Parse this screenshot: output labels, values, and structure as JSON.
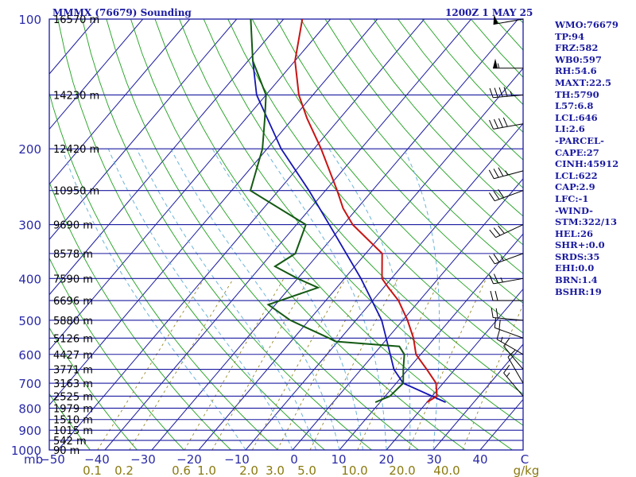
{
  "header": {
    "title": "MMMX (76679) Sounding",
    "valid_time": "1200Z  1 MAY 25"
  },
  "stats": [
    "WMO:76679",
    "TP:94",
    "FRZ:582",
    "WB0:597",
    "RH:54.6",
    "MAXT:22.5",
    "TH:5790",
    "L57:6.8",
    "LCL:646",
    "LI:2.6",
    "-PARCEL-",
    "CAPE:27",
    "CINH:45912",
    "LCL:622",
    "CAP:2.9",
    "LFC:-1",
    "-WIND-",
    "STM:322/13",
    "HEL:26",
    "SHR+:0.0",
    "SRDS:35",
    "EHI:0.0",
    "BRN:1.4",
    "BSHR:19"
  ],
  "colors": {
    "isobar": "#1a1aa0",
    "isotherm": "#1a1aa0",
    "dry_adiabat": "#1ea01e",
    "moist_adiabat": "#6ab4d8",
    "mixing_ratio": "#8a7a10",
    "temperature": "#c81414",
    "dewpoint": "#145a14",
    "parcel": "#1414b4"
  },
  "chart_data": {
    "type": "skew-t",
    "title": "MMMX (76679) Sounding",
    "y_axis": {
      "scale": "log-pressure",
      "unit": "mb",
      "range": [
        1000,
        100
      ]
    },
    "x_axis": {
      "unit": "C",
      "range": [
        -50,
        50
      ]
    },
    "x_axis_label": "mb",
    "pressure_ticks": [
      "100",
      "200",
      "300",
      "400",
      "500",
      "600",
      "700",
      "800",
      "900",
      "1000"
    ],
    "temperature_ticks": [
      "−50",
      "−40",
      "−30",
      "−20",
      "−10",
      "0",
      "10",
      "20",
      "30",
      "40",
      "C"
    ],
    "mixing_ratio_ticks": [
      "0.1",
      "0.2",
      "0.6",
      "1.0",
      "2.0",
      "3.0",
      "5.0",
      "10.0",
      "20.0",
      "40.0",
      "g/kg"
    ],
    "heights": [
      {
        "p": 100,
        "label": "16570 m"
      },
      {
        "p": 150,
        "label": "14230 m"
      },
      {
        "p": 200,
        "label": "12420 m"
      },
      {
        "p": 250,
        "label": "10950 m"
      },
      {
        "p": 300,
        "label": "9690 m"
      },
      {
        "p": 350,
        "label": "8578 m"
      },
      {
        "p": 400,
        "label": "7590 m"
      },
      {
        "p": 450,
        "label": "6696 m"
      },
      {
        "p": 500,
        "label": "5880 m"
      },
      {
        "p": 550,
        "label": "5126 m"
      },
      {
        "p": 600,
        "label": "4427 m"
      },
      {
        "p": 650,
        "label": "3771 m"
      },
      {
        "p": 700,
        "label": "3163 m"
      },
      {
        "p": 750,
        "label": "2525 m"
      },
      {
        "p": 800,
        "label": "1979 m"
      },
      {
        "p": 850,
        "label": "1510 m"
      },
      {
        "p": 900,
        "label": "1015 m"
      },
      {
        "p": 950,
        "label": "542 m"
      },
      {
        "p": 1000,
        "label": "90 m"
      }
    ],
    "temperature_profile": [
      {
        "p": 775,
        "t": 20.0
      },
      {
        "p": 750,
        "t": 21.0
      },
      {
        "p": 700,
        "t": 18.5
      },
      {
        "p": 650,
        "t": 14.0
      },
      {
        "p": 600,
        "t": 9.0
      },
      {
        "p": 550,
        "t": 5.5
      },
      {
        "p": 500,
        "t": 1.0
      },
      {
        "p": 450,
        "t": -4.5
      },
      {
        "p": 420,
        "t": -9.0
      },
      {
        "p": 400,
        "t": -12.0
      },
      {
        "p": 350,
        "t": -16.5
      },
      {
        "p": 300,
        "t": -28.0
      },
      {
        "p": 275,
        "t": -33.0
      },
      {
        "p": 250,
        "t": -37.5
      },
      {
        "p": 200,
        "t": -48.5
      },
      {
        "p": 170,
        "t": -57.0
      },
      {
        "p": 150,
        "t": -63.0
      },
      {
        "p": 125,
        "t": -70.0
      },
      {
        "p": 100,
        "t": -76.0
      }
    ],
    "dewpoint_profile": [
      {
        "p": 775,
        "t": 9.0
      },
      {
        "p": 750,
        "t": 11.0
      },
      {
        "p": 700,
        "t": 11.5
      },
      {
        "p": 650,
        "t": 9.0
      },
      {
        "p": 600,
        "t": 6.5
      },
      {
        "p": 575,
        "t": 4.0
      },
      {
        "p": 560,
        "t": -10.5
      },
      {
        "p": 550,
        "t": -12.5
      },
      {
        "p": 500,
        "t": -24.0
      },
      {
        "p": 460,
        "t": -31.5
      },
      {
        "p": 420,
        "t": -24.0
      },
      {
        "p": 400,
        "t": -30.0
      },
      {
        "p": 375,
        "t": -37.0
      },
      {
        "p": 350,
        "t": -35.0
      },
      {
        "p": 300,
        "t": -38.0
      },
      {
        "p": 250,
        "t": -56.0
      },
      {
        "p": 200,
        "t": -61.0
      },
      {
        "p": 170,
        "t": -66.0
      },
      {
        "p": 150,
        "t": -70.0
      },
      {
        "p": 125,
        "t": -79.0
      },
      {
        "p": 100,
        "t": -87.0
      }
    ],
    "parcel_profile": [
      {
        "p": 775,
        "t": 24.0
      },
      {
        "p": 700,
        "t": 11.5
      },
      {
        "p": 650,
        "t": 7.0
      },
      {
        "p": 600,
        "t": 3.5
      },
      {
        "p": 500,
        "t": -4.5
      },
      {
        "p": 400,
        "t": -16.5
      },
      {
        "p": 300,
        "t": -33.0
      },
      {
        "p": 250,
        "t": -43.5
      },
      {
        "p": 200,
        "t": -57.0
      },
      {
        "p": 150,
        "t": -72.0
      },
      {
        "p": 125,
        "t": -79.0
      }
    ],
    "wind_profile": [
      {
        "p": 100,
        "dir": 260,
        "spd": 50
      },
      {
        "p": 130,
        "dir": 270,
        "spd": 55
      },
      {
        "p": 150,
        "dir": 265,
        "spd": 45
      },
      {
        "p": 175,
        "dir": 260,
        "spd": 40
      },
      {
        "p": 225,
        "dir": 255,
        "spd": 35
      },
      {
        "p": 250,
        "dir": 250,
        "spd": 30
      },
      {
        "p": 300,
        "dir": 245,
        "spd": 30
      },
      {
        "p": 350,
        "dir": 250,
        "spd": 25
      },
      {
        "p": 400,
        "dir": 260,
        "spd": 25
      },
      {
        "p": 450,
        "dir": 270,
        "spd": 20
      },
      {
        "p": 500,
        "dir": 275,
        "spd": 20
      },
      {
        "p": 550,
        "dir": 290,
        "spd": 20
      },
      {
        "p": 600,
        "dir": 300,
        "spd": 15
      },
      {
        "p": 650,
        "dir": 320,
        "spd": 10
      },
      {
        "p": 700,
        "dir": 330,
        "spd": 10
      },
      {
        "p": 750,
        "dir": 320,
        "spd": 15
      }
    ]
  }
}
